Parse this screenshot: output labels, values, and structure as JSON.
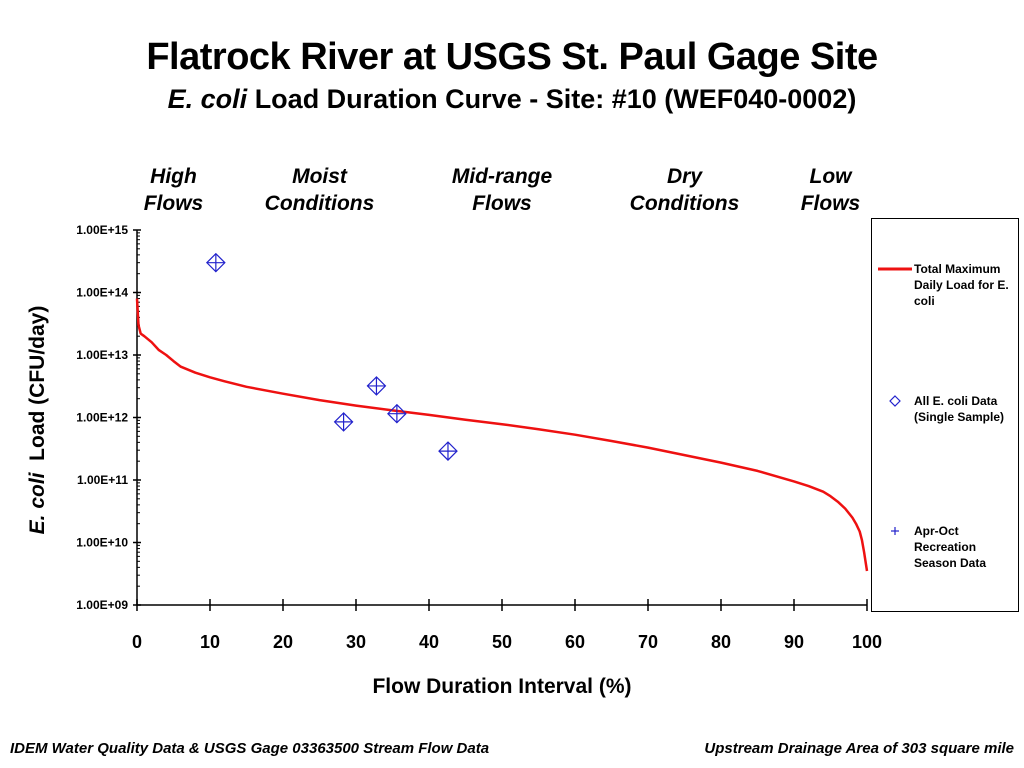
{
  "chart_data": {
    "type": "line",
    "title": "Flatrock River at USGS St. Paul Gage Site",
    "subtitle_italic": "E. coli",
    "subtitle_rest": " Load Duration Curve - Site: #10 (WEF040-0002)",
    "xlabel": "Flow Duration Interval (%)",
    "ylabel_italic": "E. coli",
    "ylabel_rest": "  Load (CFU/day)",
    "xlim": [
      0,
      100
    ],
    "ylim": [
      1000000000.0,
      1000000000000000.0
    ],
    "y_scale": "log",
    "x_ticks": [
      0,
      10,
      20,
      30,
      40,
      50,
      60,
      70,
      80,
      90,
      100
    ],
    "x_tick_labels": [
      "0",
      "10",
      "20",
      "30",
      "40",
      "50",
      "60",
      "70",
      "80",
      "90",
      "100"
    ],
    "y_ticks": [
      1000000000000000.0,
      100000000000000.0,
      10000000000000.0,
      1000000000000.0,
      100000000000.0,
      10000000000.0,
      1000000000.0
    ],
    "y_tick_labels": [
      "1.00E+15",
      "1.00E+14",
      "1.00E+13",
      "1.00E+12",
      "1.00E+11",
      "1.00E+10",
      "1.00E+09"
    ],
    "zones": [
      {
        "line1": "High",
        "line2": "Flows",
        "center": 5
      },
      {
        "line1": "Moist",
        "line2": "Conditions",
        "center": 25
      },
      {
        "line1": "Mid-range",
        "line2": "Flows",
        "center": 50
      },
      {
        "line1": "Dry",
        "line2": "Conditions",
        "center": 75
      },
      {
        "line1": "Low",
        "line2": "Flows",
        "center": 95
      }
    ],
    "series": [
      {
        "name": "Total Maximum Daily Load for E. coli",
        "type": "line",
        "color": "#ee1111",
        "x": [
          0,
          0.2,
          0.5,
          1,
          2,
          3,
          4,
          5,
          6,
          8,
          10,
          12,
          15,
          20,
          25,
          30,
          35,
          40,
          45,
          50,
          55,
          60,
          65,
          70,
          75,
          80,
          85,
          90,
          92,
          94,
          95,
          96,
          97,
          98,
          98.5,
          99,
          99.3,
          99.6,
          99.8,
          100
        ],
        "y": [
          80000000000000.0,
          30000000000000.0,
          22000000000000.0,
          20000000000000.0,
          16000000000000.0,
          12000000000000.0,
          10000000000000.0,
          8000000000000.0,
          6500000000000.0,
          5200000000000.0,
          4400000000000.0,
          3800000000000.0,
          3100000000000.0,
          2400000000000.0,
          1900000000000.0,
          1550000000000.0,
          1300000000000.0,
          1100000000000.0,
          920000000000.0,
          780000000000.0,
          650000000000.0,
          530000000000.0,
          420000000000.0,
          330000000000.0,
          250000000000.0,
          190000000000.0,
          140000000000.0,
          95000000000.0,
          80000000000.0,
          65000000000.0,
          55000000000.0,
          45000000000.0,
          35000000000.0,
          25000000000.0,
          20000000000.0,
          15000000000.0,
          11000000000.0,
          7000000000.0,
          5000000000.0,
          3500000000.0
        ]
      },
      {
        "name": "All E. coli Data (Single Sample)",
        "type": "scatter",
        "marker": "diamond",
        "color": "#2222cc",
        "x": [
          10.8,
          28.3,
          32.8,
          35.6,
          42.6
        ],
        "y": [
          300000000000000.0,
          850000000000.0,
          3200000000000.0,
          1150000000000.0,
          290000000000.0
        ]
      },
      {
        "name": "Apr-Oct Recreation Season Data",
        "type": "scatter",
        "marker": "plus",
        "color": "#2222cc",
        "x": [
          10.8,
          28.3,
          32.8,
          35.6,
          42.6
        ],
        "y": [
          300000000000000.0,
          850000000000.0,
          3200000000000.0,
          1150000000000.0,
          290000000000.0
        ]
      }
    ],
    "legend": {
      "placement": "right",
      "entries": [
        {
          "label": "Total Maximum Daily Load for E. coli",
          "symbol": "line"
        },
        {
          "label": "All E. coli Data (Single Sample)",
          "symbol": "diamond"
        },
        {
          "label": "Apr-Oct Recreation Season Data",
          "symbol": "plus"
        }
      ]
    },
    "grid": false
  },
  "footer": {
    "left": "IDEM Water Quality Data & USGS Gage 03363500 Stream Flow Data",
    "right": "Upstream Drainage Area of 303 square mile"
  }
}
